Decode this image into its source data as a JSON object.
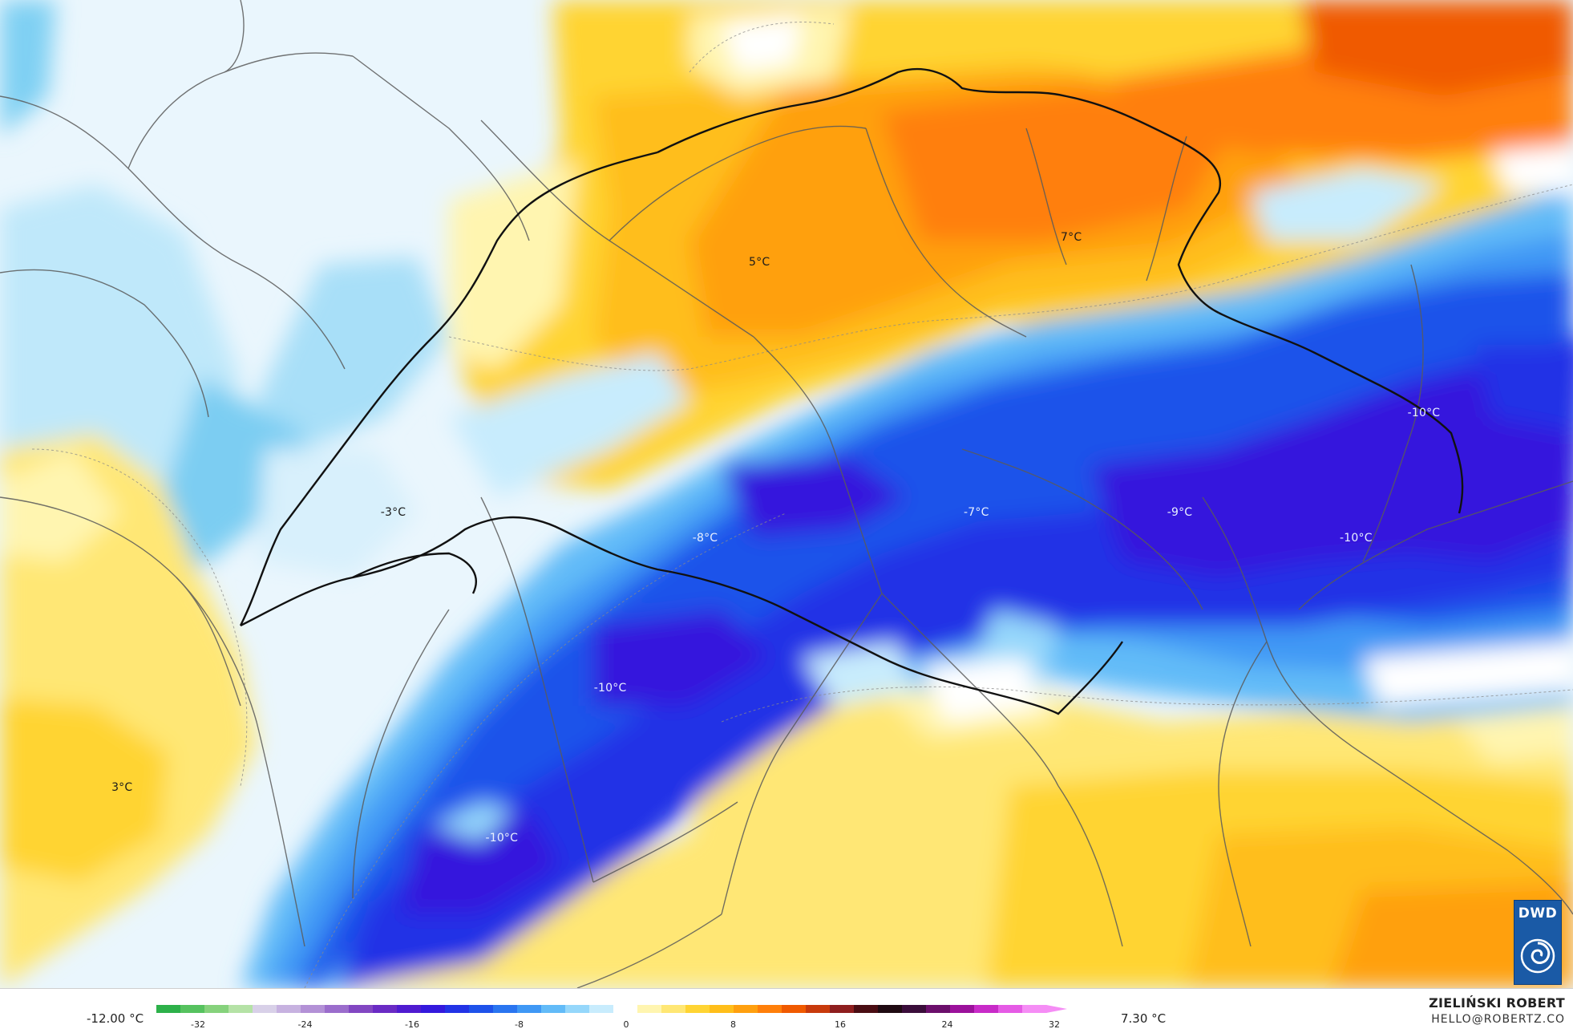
{
  "map": {
    "temperature_labels": [
      {
        "text": "7°C",
        "tone": "warm",
        "lon": 10.6,
        "lat": 47.7
      },
      {
        "text": "5°C",
        "tone": "warm",
        "lon": 8.3,
        "lat": 47.6
      },
      {
        "text": "-3°C",
        "tone": "cool",
        "lon": 5.6,
        "lat": 46.6
      },
      {
        "text": "-7°C",
        "tone": "cold",
        "lon": 9.9,
        "lat": 46.6
      },
      {
        "text": "-8°C",
        "tone": "cold",
        "lon": 7.9,
        "lat": 46.5
      },
      {
        "text": "-9°C",
        "tone": "cold",
        "lon": 11.4,
        "lat": 46.6
      },
      {
        "text": "-10°C",
        "tone": "cold",
        "lon": 13.2,
        "lat": 47.0
      },
      {
        "text": "-10°C",
        "tone": "cold",
        "lon": 12.7,
        "lat": 46.5
      },
      {
        "text": "-10°C",
        "tone": "cold",
        "lon": 7.2,
        "lat": 45.9
      },
      {
        "text": "3°C",
        "tone": "warm",
        "lon": 3.6,
        "lat": 45.5
      },
      {
        "text": "-10°C",
        "tone": "cold",
        "lon": 6.4,
        "lat": 45.3
      }
    ]
  },
  "logo": {
    "text": "DWD",
    "color": "#1a5aa6"
  },
  "legend": {
    "min_label": "-12.00 °C",
    "max_label": "7.30 °C",
    "ticks": [
      "-32",
      "-24",
      "-16",
      "-8",
      "0",
      "8",
      "16",
      "24",
      "32"
    ],
    "colors": [
      "#2db14a",
      "#56c25f",
      "#86d27c",
      "#b5e2a6",
      "#d8d0e8",
      "#c7b2e0",
      "#b391d6",
      "#9b6dcc",
      "#8247c2",
      "#6a2bc4",
      "#4f1bd0",
      "#3419dd",
      "#2233e6",
      "#1e52ea",
      "#2a75f0",
      "#3f98f5",
      "#62bbf8",
      "#95d7fb",
      "#c8ecfd",
      "#ffffff",
      "#fff5b0",
      "#ffe774",
      "#ffd433",
      "#ffbe1a",
      "#ffa00f",
      "#ff7f0a",
      "#f05a00",
      "#c83a0c",
      "#8e1e1e",
      "#4a0d13",
      "#1f0a12",
      "#3a0d3a",
      "#6b0f6b",
      "#9b119b",
      "#c82bc8",
      "#e55be5",
      "#f58df5"
    ]
  },
  "credit": {
    "name": "ZIELIŃSKI ROBERT",
    "email": "HELLO@ROBERTZ.CO"
  }
}
